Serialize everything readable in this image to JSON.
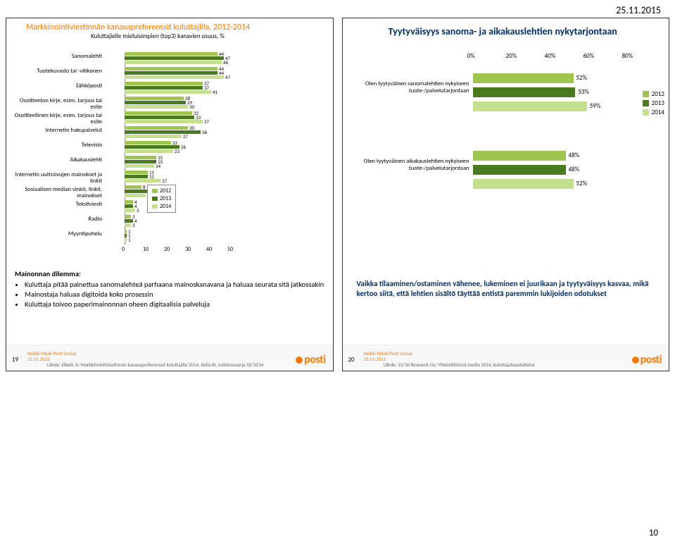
{
  "page_date": "25.11.2015",
  "corner_page_number": "10",
  "colors": {
    "y2012": "#9ec54d",
    "y2013": "#4a7a1f",
    "y2014": "#c5e08c",
    "accent_orange": "#ff7900",
    "summary_blue": "#002f6c"
  },
  "left": {
    "title": "Markkinointiviestinnän kanavapreferenssit kuluttajilla, 2012-2014",
    "subtitle": "Kuluttajielle mieluisimpien (top3) kanavien osuus, %",
    "chart": {
      "type": "grouped-horizontal-bar",
      "xlim": [
        0,
        50
      ],
      "xtick_step": 10,
      "years": [
        "2012",
        "2013",
        "2014"
      ],
      "categories": [
        {
          "label": "Sanomalehti",
          "v": [
            44,
            47,
            46
          ]
        },
        {
          "label": "Tuotekuvasto tai -vihkonen",
          "v": [
            44,
            44,
            47
          ]
        },
        {
          "label": "Sähköposti",
          "v": [
            37,
            37,
            41
          ]
        },
        {
          "label": "Osoitteeton kirje, esim. tarjous tai esite",
          "v": [
            28,
            29,
            30
          ]
        },
        {
          "label": "Osoitteellinen kirje, esim. tarjous tai esite",
          "v": [
            32,
            33,
            37
          ]
        },
        {
          "label": "Internetin hakupalvelut",
          "v": [
            30,
            36,
            27
          ]
        },
        {
          "label": "Televisio",
          "v": [
            22,
            26,
            23
          ]
        },
        {
          "label": "Aikakauslehti",
          "v": [
            15,
            15,
            14
          ]
        },
        {
          "label": "Internetin uutissivujen mainokset ja linkit",
          "v": [
            11,
            11,
            17
          ]
        },
        {
          "label": "Sosiaalisen median vinkit, linkit, mainokset",
          "v": [
            8,
            13,
            10
          ]
        },
        {
          "label": "Tekstiviesti",
          "v": [
            4,
            4,
            5
          ]
        },
        {
          "label": "Radio",
          "v": [
            3,
            4,
            3
          ]
        },
        {
          "label": "Myyntipuhelu",
          "v": [
            1,
            1,
            1
          ]
        }
      ]
    },
    "legend": [
      "2012",
      "2013",
      "2014"
    ],
    "dilemma_title": "Mainonnan dilemma:",
    "bullets": [
      "Kuluttaja pitää painettua sanomalehteä parhaana mainoskanavana ja haluaa seurata sitä jatkossakin",
      "Mainostaja haluaa digitoida koko prosessin",
      "Kuluttaja toivoo paperimainonnan oheen digitaalisia palveluja"
    ],
    "footer": {
      "num": "19",
      "meta": "Heikki Nikali Posti Group",
      "date": "25.11.2015",
      "src": "Lähde: Elkelä, K: Markkinointiviestinnän kanavapreferenssit kuluttajilla 2014. Itella BI, tutkimussarja 50/2014",
      "logo": "posti"
    }
  },
  "right": {
    "title": "Tyytyväisyys sanoma- ja aikakauslehtien nykytarjontaan",
    "chart": {
      "type": "grouped-horizontal-bar",
      "xlim": [
        0,
        80
      ],
      "xtick_step": 20,
      "xticks": [
        "0%",
        "20%",
        "40%",
        "60%",
        "80%"
      ],
      "years": [
        "2012",
        "2013",
        "2014"
      ],
      "categories": [
        {
          "label": "Olen tyytyväinen sanomalehtien nykyiseen tuote-/palvelutarjontaan",
          "v": [
            52,
            53,
            59
          ]
        },
        {
          "label": "Olen tyytyväinen aikakauslehtien nykyiseen tuote-/palvelutarjontaan",
          "v": [
            48,
            48,
            52
          ]
        }
      ]
    },
    "legend": [
      "2012",
      "2013",
      "2014"
    ],
    "summary": "Vaikka tilaaminen/ostaminen vähenee, lukeminen ei juurikaan ja tyytyväisyys kasvaa, mikä kertoo siitä, että lehtien sisältö täyttää entistä paremmin lukijoiden odotukset",
    "footer": {
      "num": "20",
      "meta": "Heikki Nikali Posti Group",
      "date": "25.11.2015",
      "src": "Lähde: 15/30 Research Oy: Yhteisöllistyvä media 2014, kuluttajahaastattelut",
      "logo": "posti"
    }
  }
}
